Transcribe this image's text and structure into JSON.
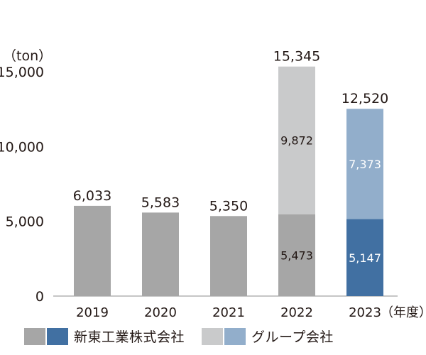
{
  "chart_data": {
    "type": "bar",
    "stacked": true,
    "unit_label": "（ton）",
    "xlabel_suffix": "（年度）",
    "categories": [
      "2019",
      "2020",
      "2021",
      "2022",
      "2023"
    ],
    "ylim": [
      0,
      15000
    ],
    "yticks": [
      0,
      5000,
      10000,
      15000
    ],
    "ytick_labels": [
      "0",
      "5,000",
      "10,000",
      "15,000"
    ],
    "totals": [
      6033,
      5583,
      5350,
      15345,
      12520
    ],
    "total_labels": [
      "6,033",
      "5,583",
      "5,350",
      "15,345",
      "12,520"
    ],
    "segments": [
      {
        "category": "2019",
        "bottom": {
          "value": 6033,
          "label": "",
          "color": "#a6a6a6"
        },
        "top": null
      },
      {
        "category": "2020",
        "bottom": {
          "value": 5583,
          "label": "",
          "color": "#a6a6a6"
        },
        "top": null
      },
      {
        "category": "2021",
        "bottom": {
          "value": 5350,
          "label": "",
          "color": "#a6a6a6"
        },
        "top": null
      },
      {
        "category": "2022",
        "bottom": {
          "value": 5473,
          "label": "5,473",
          "color": "#a6a6a6"
        },
        "top": {
          "value": 9872,
          "label": "9,872",
          "color": "#c9cacb"
        }
      },
      {
        "category": "2023",
        "bottom": {
          "value": 5147,
          "label": "5,147",
          "color": "#4170a2"
        },
        "top": {
          "value": 7373,
          "label": "7,373",
          "color": "#92aecb"
        }
      }
    ],
    "legend": [
      {
        "label": "新東工業株式会社",
        "colors": [
          "#a6a6a6",
          "#4170a2"
        ]
      },
      {
        "label": "グループ会社",
        "colors": [
          "#c9cacb",
          "#92aecb"
        ]
      }
    ],
    "grid": false
  }
}
